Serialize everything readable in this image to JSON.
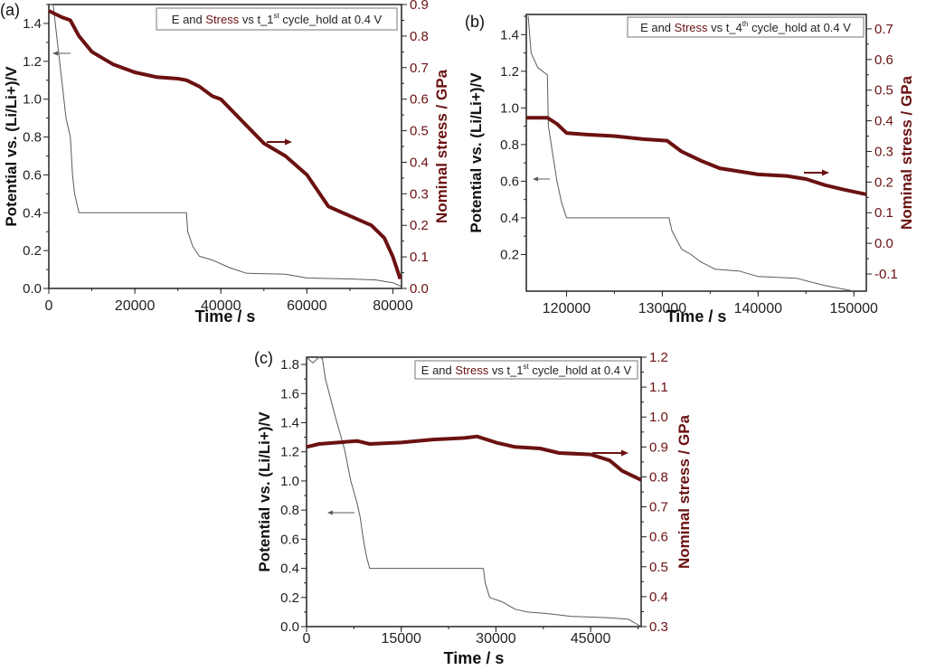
{
  "colors": {
    "stress": "#6b1111",
    "potential": "#5a5a5a",
    "axis": "#222222"
  },
  "chart_data": [
    {
      "type": "line",
      "panel_label": "(a)",
      "legend": {
        "prefix": "E and ",
        "highlight": "Stress",
        "middle": " vs t_1",
        "sup": "st",
        "suffix": " cycle_hold at 0.4 V"
      },
      "xlabel": "Time / s",
      "ylabel": "Potential vs. (Li/Li+)/V",
      "y2label": "Nominal stress / GPa",
      "xlim": [
        0,
        82000
      ],
      "ylim": [
        0,
        1.5
      ],
      "y2lim": [
        0,
        0.9
      ],
      "xticks": [
        0,
        20000,
        40000,
        60000,
        80000
      ],
      "yticks": [
        0.0,
        0.2,
        0.4,
        0.6,
        0.8,
        1.0,
        1.2,
        1.4
      ],
      "y2ticks": [
        0.0,
        0.1,
        0.2,
        0.3,
        0.4,
        0.5,
        0.6,
        0.7,
        0.8,
        0.9
      ],
      "series": [
        {
          "name": "E",
          "axis": "left",
          "x": [
            0,
            1000,
            2000,
            3000,
            4000,
            5000,
            5500,
            6000,
            7000,
            32000,
            32300,
            33500,
            35000,
            38000,
            42000,
            46000,
            55000,
            60000,
            70000,
            76000,
            80000,
            82000
          ],
          "y": [
            1.5,
            1.5,
            1.3,
            1.1,
            0.9,
            0.8,
            0.6,
            0.5,
            0.4,
            0.4,
            0.3,
            0.22,
            0.17,
            0.15,
            0.11,
            0.08,
            0.075,
            0.055,
            0.05,
            0.045,
            0.03,
            0.01
          ]
        },
        {
          "name": "Stress",
          "axis": "right",
          "x": [
            0,
            3000,
            5000,
            7000,
            10000,
            15000,
            20000,
            25000,
            30000,
            32000,
            35000,
            38000,
            40000,
            45000,
            50000,
            55000,
            60000,
            63000,
            65000,
            70000,
            75000,
            78000,
            80000,
            81700
          ],
          "y": [
            0.88,
            0.86,
            0.85,
            0.8,
            0.75,
            0.71,
            0.685,
            0.67,
            0.665,
            0.66,
            0.64,
            0.61,
            0.6,
            0.53,
            0.46,
            0.42,
            0.36,
            0.3,
            0.26,
            0.23,
            0.2,
            0.16,
            0.1,
            0.03
          ]
        }
      ]
    },
    {
      "type": "line",
      "panel_label": "(b)",
      "legend": {
        "prefix": "E and ",
        "highlight": "Stress",
        "middle": " vs t_4",
        "sup": "th",
        "suffix": " cycle_hold at 0.4 V"
      },
      "xlabel": "Time / s",
      "ylabel": "Potential vs. (Li/Li+)/V",
      "y2label": "Nominal stress / GPa",
      "xlim": [
        115800,
        151300
      ],
      "ylim": [
        0,
        1.51
      ],
      "y2lim": [
        -0.156,
        0.747
      ],
      "xticks": [
        120000,
        130000,
        140000,
        150000
      ],
      "yticks": [
        0.2,
        0.4,
        0.6,
        0.8,
        1.0,
        1.2,
        1.4
      ],
      "y2ticks": [
        -0.1,
        0.0,
        0.1,
        0.2,
        0.3,
        0.4,
        0.5,
        0.6,
        0.7
      ],
      "series": [
        {
          "name": "E",
          "axis": "left",
          "x": [
            116000,
            116300,
            117000,
            118000,
            118100,
            119000,
            119500,
            120000,
            130700,
            131000,
            132000,
            133000,
            134000,
            135500,
            138000,
            140000,
            144000,
            147000,
            150000
          ],
          "y": [
            1.5,
            1.3,
            1.22,
            1.18,
            0.9,
            0.6,
            0.48,
            0.4,
            0.4,
            0.33,
            0.23,
            0.2,
            0.16,
            0.12,
            0.11,
            0.08,
            0.07,
            0.03,
            0.0
          ]
        },
        {
          "name": "Stress",
          "axis": "right",
          "x": [
            115800,
            118000,
            119000,
            120000,
            122000,
            125000,
            128000,
            130500,
            132000,
            134000,
            136000,
            138000,
            140000,
            143000,
            145000,
            147000,
            149000,
            151300
          ],
          "y": [
            0.41,
            0.41,
            0.39,
            0.36,
            0.355,
            0.35,
            0.34,
            0.335,
            0.3,
            0.27,
            0.245,
            0.235,
            0.225,
            0.22,
            0.21,
            0.19,
            0.175,
            0.16
          ]
        }
      ]
    },
    {
      "type": "line",
      "panel_label": "(c)",
      "legend": {
        "prefix": "E and ",
        "highlight": "Stress",
        "middle": " vs t_1",
        "sup": "st",
        "suffix": " cycle_hold at 0.4 V"
      },
      "xlabel": "Time / s",
      "ylabel": "Potential vs. (Li/Li+)/V",
      "y2label": "Nominal stress / GPa",
      "xlim": [
        0,
        53000
      ],
      "ylim": [
        0,
        1.85
      ],
      "y2lim": [
        0.3,
        1.2
      ],
      "xticks": [
        0,
        15000,
        30000,
        45000
      ],
      "yticks": [
        0.0,
        0.2,
        0.4,
        0.6,
        0.8,
        1.0,
        1.2,
        1.4,
        1.6,
        1.8
      ],
      "y2ticks": [
        0.3,
        0.4,
        0.5,
        0.6,
        0.7,
        0.8,
        0.9,
        1.0,
        1.1,
        1.2
      ],
      "series": [
        {
          "name": "E",
          "axis": "left",
          "x": [
            0,
            1000,
            2000,
            2500,
            3000,
            4500,
            6000,
            7000,
            8000,
            8500,
            9000,
            9500,
            10000,
            28000,
            28300,
            29000,
            31000,
            33000,
            35000,
            38000,
            42000,
            48000,
            51000,
            53000
          ],
          "y": [
            1.85,
            1.81,
            1.85,
            1.84,
            1.7,
            1.45,
            1.22,
            1.0,
            0.85,
            0.75,
            0.6,
            0.48,
            0.4,
            0.4,
            0.3,
            0.2,
            0.17,
            0.12,
            0.1,
            0.09,
            0.07,
            0.06,
            0.05,
            0.0
          ]
        },
        {
          "name": "Stress",
          "axis": "right",
          "x": [
            0,
            2000,
            8000,
            10000,
            15000,
            20000,
            25000,
            27000,
            30000,
            33000,
            37000,
            40000,
            45000,
            48000,
            50000,
            53000
          ],
          "y": [
            0.9,
            0.91,
            0.92,
            0.91,
            0.915,
            0.925,
            0.93,
            0.935,
            0.915,
            0.9,
            0.895,
            0.88,
            0.875,
            0.855,
            0.82,
            0.79
          ]
        }
      ]
    }
  ]
}
